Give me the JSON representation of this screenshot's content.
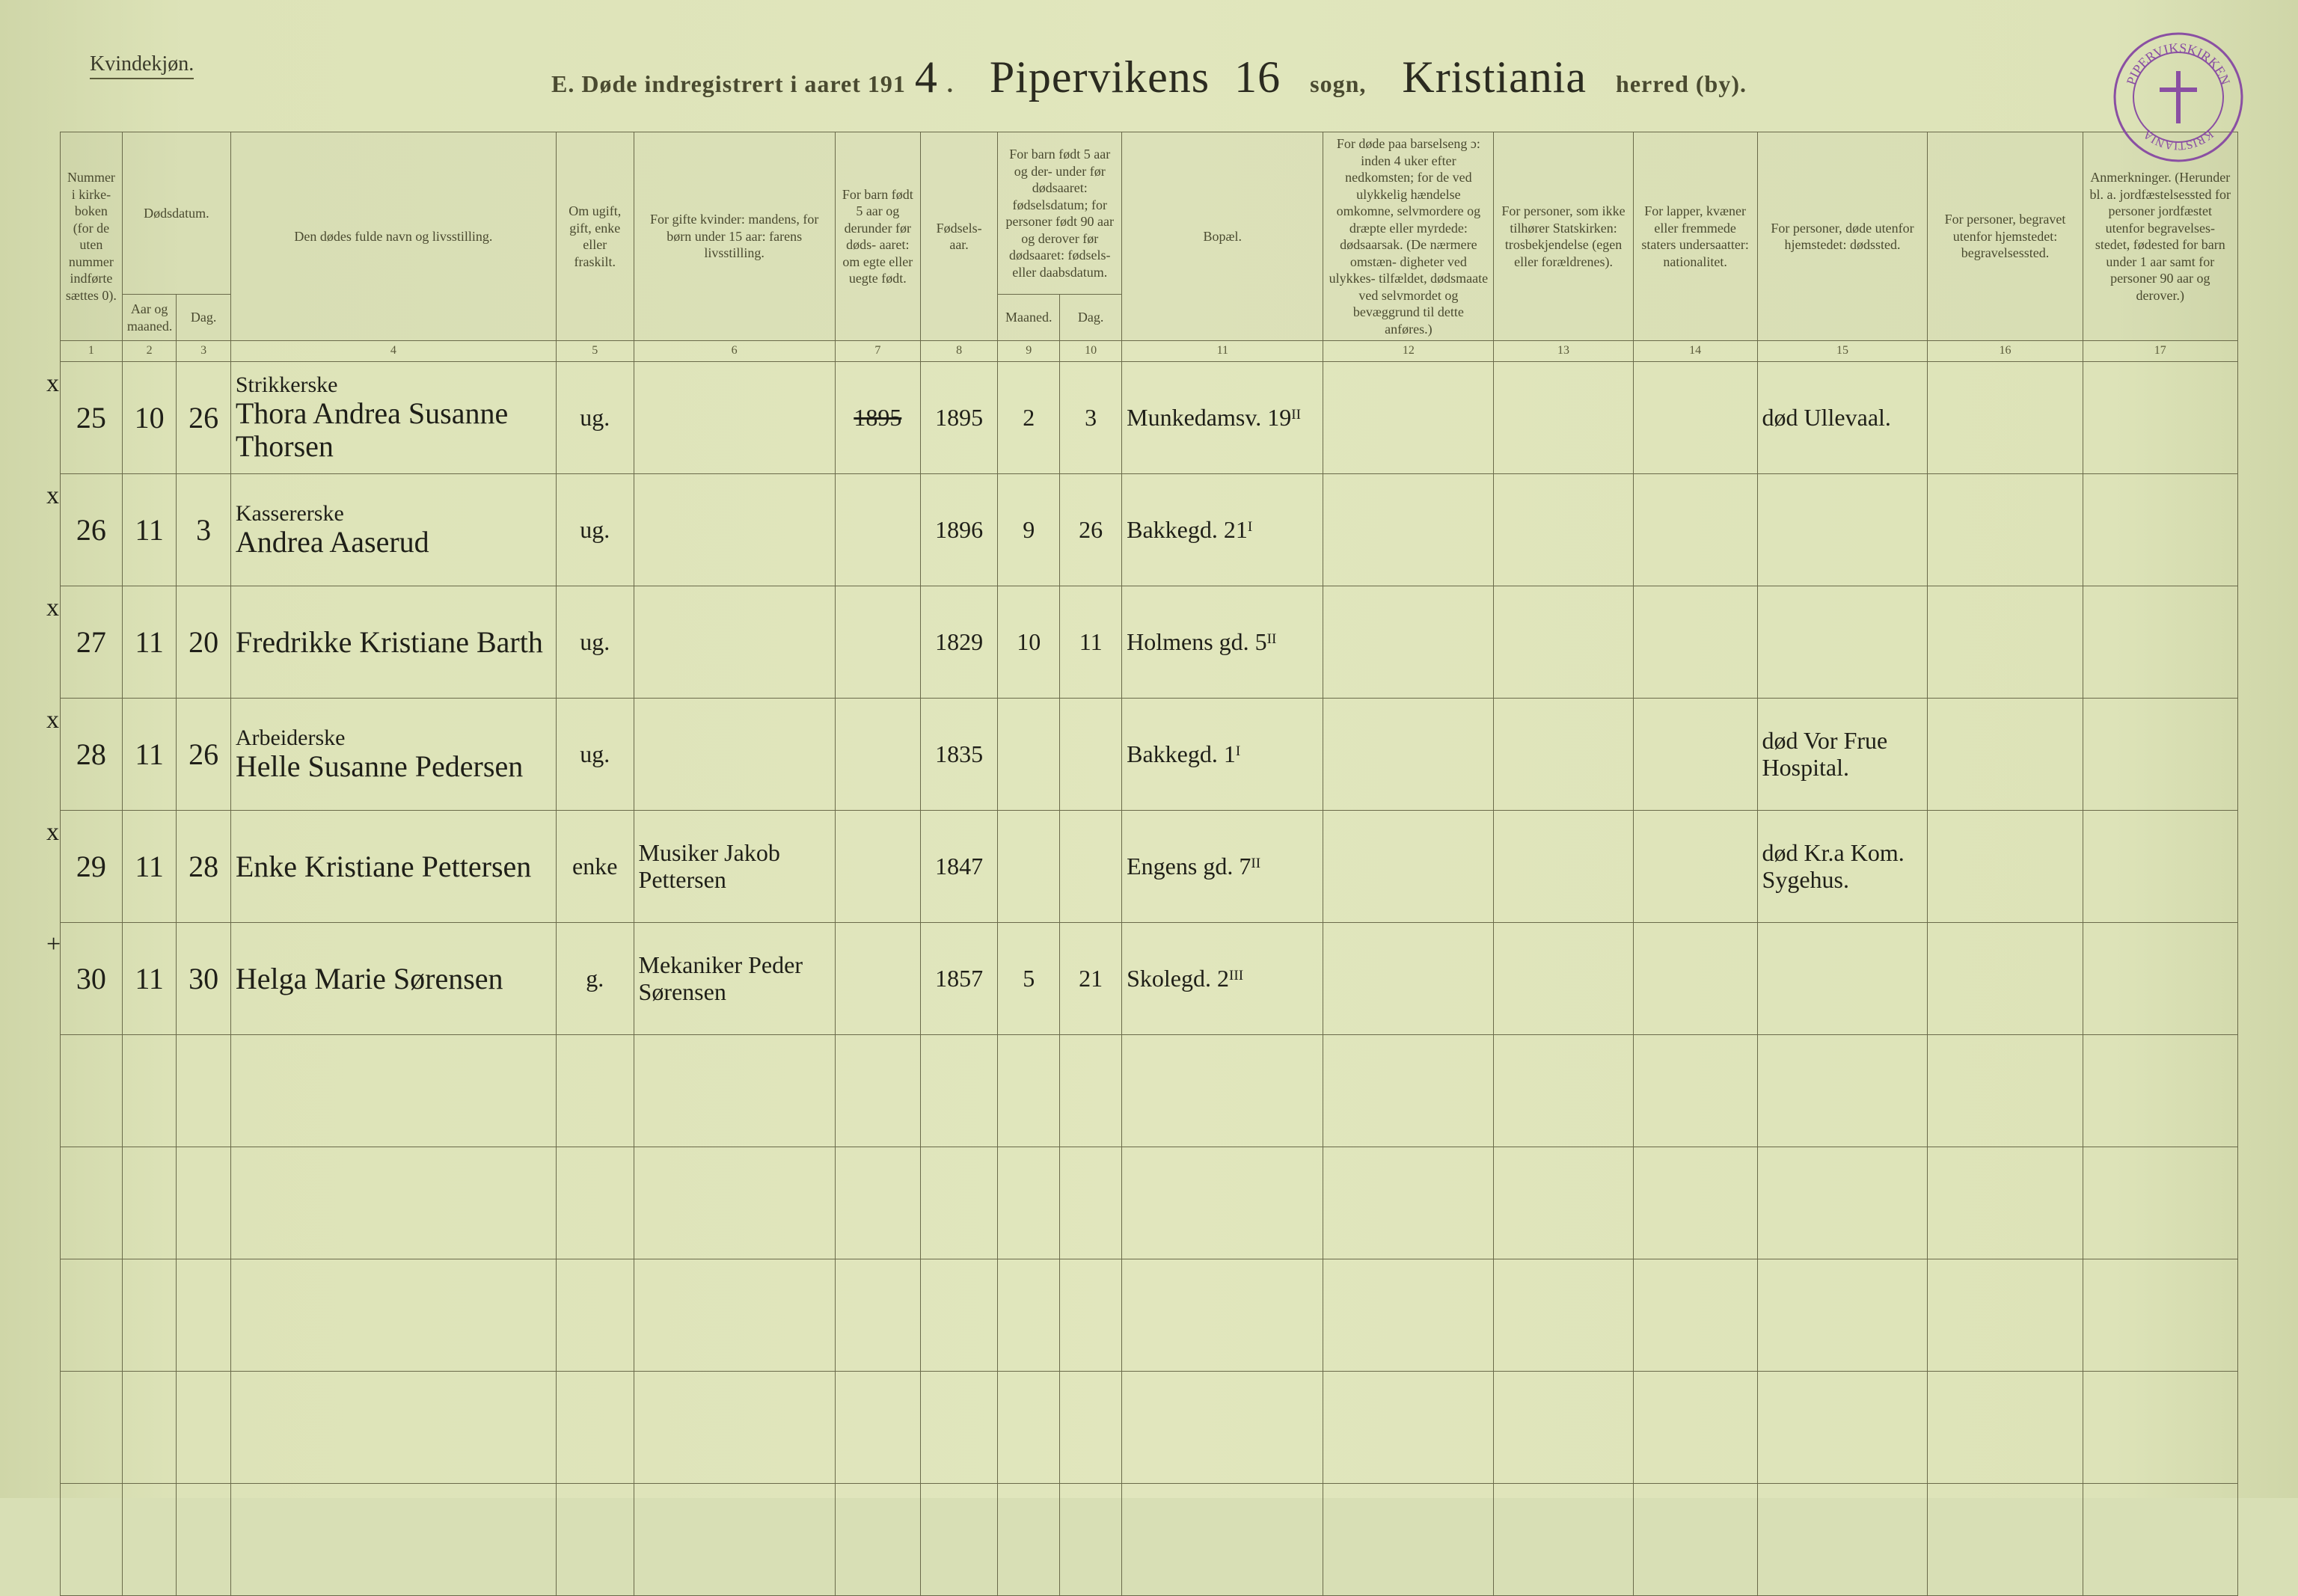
{
  "meta": {
    "gender_label": "Kvindekjøn.",
    "title_prefix": "E.  Døde indregistrert i aaret 191",
    "year_suffix_hand": "4",
    "parish_hand": "Pipervikens",
    "parish_number_hand": "16",
    "sogn_label": "sogn,",
    "district_hand": "Kristiania",
    "herred_label": "herred (by).",
    "stamp_text_top": "PIPERVIKSKIRKEN",
    "stamp_text_bottom": "KRISTIANIA",
    "stamp_color": "#8a4fa3",
    "page_bg": "#dde3b8",
    "ink_color": "#1f1f18",
    "rule_color": "#6a6a4a"
  },
  "headers": {
    "c1": "Nummer i kirke- boken (for de uten nummer indførte sættes 0).",
    "c2_group": "Dødsdatum.",
    "c2": "Aar og maaned.",
    "c3": "Dag.",
    "c4": "Den dødes fulde navn og livsstilling.",
    "c5": "Om ugift, gift, enke eller fraskilt.",
    "c6": "For gifte kvinder: mandens, for børn under 15 aar: farens livsstilling.",
    "c7": "For barn født 5 aar og derunder før døds- aaret: om egte eller uegte født.",
    "c8": "Fødsels- aar.",
    "c9_group": "For barn født 5 aar og der- under før dødsaaret: fødselsdatum; for personer født 90 aar og derover før dødsaaret: fødsels- eller daabsdatum.",
    "c9": "Maaned.",
    "c10": "Dag.",
    "c11": "Bopæl.",
    "c12": "For døde paa barselseng ɔ: inden 4 uker efter nedkomsten; for de ved ulykkelig hændelse omkomne, selvmordere og dræpte eller myrdede: dødsaarsak. (De nærmere omstæn- digheter ved ulykkes- tilfældet, dødsmaate ved selvmordet og bevæggrund til dette anføres.)",
    "c13": "For personer, som ikke tilhører Statskirken: trosbekjendelse (egen eller forældrenes).",
    "c14": "For lapper, kvæner eller fremmede staters undersaatter: nationalitet.",
    "c15": "For personer, døde utenfor hjemstedet: dødssted.",
    "c16": "For personer, begravet utenfor hjemstedet: begravelsessted.",
    "c17": "Anmerkninger. (Herunder bl. a. jordfæstelsessted for personer jordfæstet utenfor begravelses- stedet, fødested for barn under 1 aar samt for personer 90 aar og derover.)"
  },
  "colnums": [
    "1",
    "2",
    "3",
    "4",
    "5",
    "6",
    "7",
    "8",
    "9",
    "10",
    "11",
    "12",
    "13",
    "14",
    "15",
    "16",
    "17"
  ],
  "rows": [
    {
      "margin": "x",
      "num": "25",
      "month": "10",
      "day": "26",
      "occupation": "Strikkerske",
      "name": "Thora Andrea Susanne Thorsen",
      "civil": "ug.",
      "relation": "",
      "legit_struck": "1895",
      "birth_year": "1895",
      "b_month": "2",
      "b_day": "3",
      "residence": "Munkedamsv. 19ᴵᴵ",
      "cause": "",
      "confession": "",
      "nationality": "",
      "death_place": "død Ullevaal.",
      "burial_place": "",
      "remarks": ""
    },
    {
      "margin": "x",
      "num": "26",
      "month": "11",
      "day": "3",
      "occupation": "Kassererske",
      "name": "Andrea Aaserud",
      "civil": "ug.",
      "relation": "",
      "legit_struck": "",
      "birth_year": "1896",
      "b_month": "9",
      "b_day": "26",
      "residence": "Bakkegd. 21ᴵ",
      "cause": "",
      "confession": "",
      "nationality": "",
      "death_place": "",
      "burial_place": "",
      "remarks": ""
    },
    {
      "margin": "x",
      "num": "27",
      "month": "11",
      "day": "20",
      "occupation": "",
      "name": "Fredrikke Kristiane Barth",
      "civil": "ug.",
      "relation": "",
      "legit_struck": "",
      "birth_year": "1829",
      "b_month": "10",
      "b_day": "11",
      "residence": "Holmens gd. 5ᴵᴵ",
      "cause": "",
      "confession": "",
      "nationality": "",
      "death_place": "",
      "burial_place": "",
      "remarks": ""
    },
    {
      "margin": "x",
      "num": "28",
      "month": "11",
      "day": "26",
      "occupation": "Arbeiderske",
      "name": "Helle Susanne Pedersen",
      "civil": "ug.",
      "relation": "",
      "legit_struck": "",
      "birth_year": "1835",
      "b_month": "",
      "b_day": "",
      "residence": "Bakkegd. 1ᴵ",
      "cause": "",
      "confession": "",
      "nationality": "",
      "death_place": "død Vor Frue Hospital.",
      "burial_place": "",
      "remarks": ""
    },
    {
      "margin": "x",
      "num": "29",
      "month": "11",
      "day": "28",
      "occupation": "",
      "name": "Enke Kristiane Pettersen",
      "civil": "enke",
      "relation": "Musiker Jakob Pettersen",
      "legit_struck": "",
      "birth_year": "1847",
      "b_month": "",
      "b_day": "",
      "residence": "Engens gd. 7ᴵᴵ",
      "cause": "",
      "confession": "",
      "nationality": "",
      "death_place": "død Kr.a Kom. Sygehus.",
      "burial_place": "",
      "remarks": ""
    },
    {
      "margin": "+",
      "num": "30",
      "month": "11",
      "day": "30",
      "occupation": "",
      "name": "Helga Marie Sørensen",
      "civil": "g.",
      "relation": "Mekaniker Peder Sørensen",
      "legit_struck": "",
      "birth_year": "1857",
      "b_month": "5",
      "b_day": "21",
      "residence": "Skolegd. 2ᴵᴵᴵ",
      "cause": "",
      "confession": "",
      "nationality": "",
      "death_place": "",
      "burial_place": "",
      "remarks": ""
    }
  ],
  "blank_rows": 5
}
